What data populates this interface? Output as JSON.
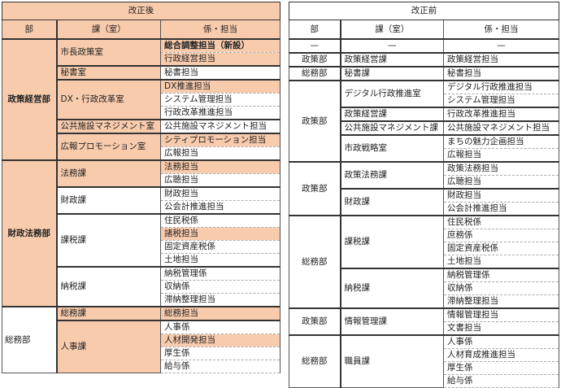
{
  "colors": {
    "highlight": "#f8cbad"
  },
  "after": {
    "title": "改正後",
    "headers": [
      "部",
      "課（室）",
      "係・担当"
    ],
    "departments": [
      {
        "name": "政策経営部",
        "bold": true,
        "highlight": true,
        "sections": [
          {
            "name": "市長政策室",
            "highlight": true,
            "items": [
              {
                "name": "総合調整担当（新設）",
                "highlight": true,
                "bold": true
              },
              {
                "name": "行政経営担当",
                "highlight": true
              }
            ]
          },
          {
            "name": "秘書室",
            "highlight": true,
            "items": [
              {
                "name": "秘書担当"
              }
            ]
          },
          {
            "name": "DX・行政改革室",
            "highlight": true,
            "items": [
              {
                "name": "DX推進担当",
                "highlight": true
              },
              {
                "name": "システム管理担当"
              },
              {
                "name": "行政改革推進担当"
              }
            ]
          },
          {
            "name": "公共施設マネジメント室",
            "highlight": true,
            "items": [
              {
                "name": "公共施設マネジメント担当"
              }
            ]
          },
          {
            "name": "広報プロモーション室",
            "highlight": true,
            "items": [
              {
                "name": "シティプロモーション担当",
                "highlight": true
              },
              {
                "name": "広報担当"
              }
            ]
          }
        ]
      },
      {
        "name": "財政法務部",
        "bold": true,
        "highlight": true,
        "sections": [
          {
            "name": "法務課",
            "highlight": true,
            "items": [
              {
                "name": "法務担当",
                "highlight": true
              },
              {
                "name": "広聴担当"
              }
            ]
          },
          {
            "name": "財政課",
            "items": [
              {
                "name": "財政担当"
              },
              {
                "name": "公会計推進担当"
              }
            ]
          },
          {
            "name": "課税課",
            "items": [
              {
                "name": "住民税係"
              },
              {
                "name": "諸税担当",
                "highlight": true
              },
              {
                "name": "固定資産税係"
              },
              {
                "name": "土地担当"
              }
            ]
          },
          {
            "name": "納税課",
            "items": [
              {
                "name": "納税管理係"
              },
              {
                "name": "収納係"
              },
              {
                "name": "滞納整理担当"
              }
            ]
          }
        ]
      },
      {
        "name": "総務部",
        "align": "left",
        "sections": [
          {
            "name": "総務課",
            "highlight": true,
            "items": [
              {
                "name": "総務担当",
                "highlight": true,
                "span": 2
              }
            ]
          },
          {
            "name": "人事課",
            "highlight": true,
            "items": [
              {
                "name": "人事係"
              },
              {
                "name": "人材開発担当",
                "highlight": true
              },
              {
                "name": "厚生係"
              },
              {
                "name": "給与係"
              }
            ]
          }
        ]
      }
    ]
  },
  "before": {
    "title": "改正前",
    "headers": [
      "部",
      "課（室）",
      "係・担当"
    ],
    "departments": [
      {
        "name": "—",
        "dash": true,
        "sections": [
          {
            "name": "—",
            "dash": true,
            "items": [
              {
                "name": "—",
                "dash": true
              }
            ]
          }
        ]
      },
      {
        "name": "政策部",
        "sections": [
          {
            "name": "政策経営課",
            "items": [
              {
                "name": "政策経営担当"
              }
            ]
          }
        ]
      },
      {
        "name": "総務部",
        "sections": [
          {
            "name": "秘書課",
            "items": [
              {
                "name": "秘書担当"
              }
            ]
          }
        ]
      },
      {
        "name": "政策部",
        "sections": [
          {
            "name": "デジタル行政推進室",
            "items": [
              {
                "name": "デジタル行政推進担当"
              },
              {
                "name": "システム管理担当"
              }
            ]
          },
          {
            "name": "政策経営課",
            "items": [
              {
                "name": "行政改革推進担当"
              }
            ]
          },
          {
            "name": "公共施設マネジメント課",
            "items": [
              {
                "name": "公共施設マネジメント担当"
              }
            ]
          },
          {
            "name": "市政戦略室",
            "items": [
              {
                "name": "まちの魅力企画担当"
              },
              {
                "name": "広報担当"
              }
            ]
          }
        ]
      },
      {
        "name": "政策部",
        "sections": [
          {
            "name": "政策法務課",
            "items": [
              {
                "name": "政策法務担当"
              },
              {
                "name": "広聴担当"
              }
            ]
          },
          {
            "name": "財政課",
            "items": [
              {
                "name": "財政担当"
              },
              {
                "name": "公会計推進担当"
              }
            ]
          }
        ]
      },
      {
        "name": "総務部",
        "sections": [
          {
            "name": "課税課",
            "items": [
              {
                "name": "住民税係"
              },
              {
                "name": "庶務係"
              },
              {
                "name": "固定資産税係"
              },
              {
                "name": "土地担当"
              }
            ]
          },
          {
            "name": "納税課",
            "items": [
              {
                "name": "納税管理係"
              },
              {
                "name": "収納係"
              },
              {
                "name": "滞納整理担当"
              }
            ]
          }
        ]
      },
      {
        "name": "政策部",
        "sections": [
          {
            "name": "情報管理課",
            "items": [
              {
                "name": "情報管理担当"
              },
              {
                "name": "文書担当"
              }
            ]
          }
        ]
      },
      {
        "name": "総務部",
        "sections": [
          {
            "name": "職員課",
            "items": [
              {
                "name": "人事係"
              },
              {
                "name": "人材育成推進担当"
              },
              {
                "name": "厚生係"
              },
              {
                "name": "給与係"
              }
            ]
          }
        ]
      }
    ]
  }
}
